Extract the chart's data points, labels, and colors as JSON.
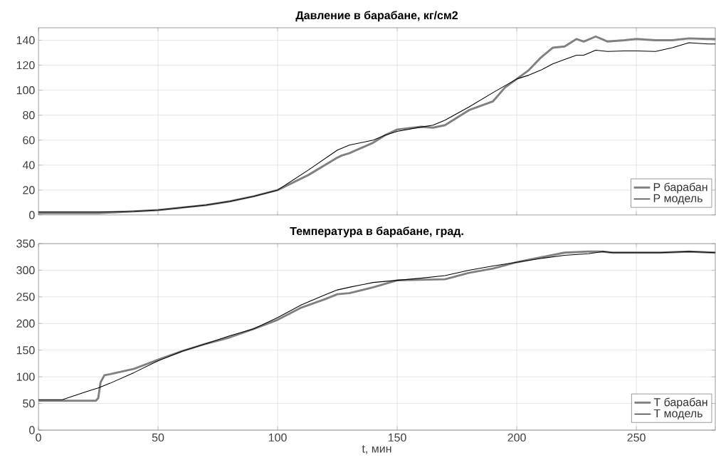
{
  "chart_data": [
    {
      "type": "line",
      "title": "Давление в барабане, кг/см2",
      "xlim": [
        0,
        283
      ],
      "xticks": [
        0,
        50,
        100,
        150,
        200,
        250
      ],
      "ylim": [
        0,
        150
      ],
      "yticks": [
        0,
        20,
        40,
        60,
        80,
        100,
        120,
        140
      ],
      "tick_labels": "y",
      "grid": true,
      "legend": "bottom right",
      "marker": "none",
      "line_style": "solid",
      "series": [
        {
          "name": "P барабан",
          "color": "#808080",
          "x": [
            0,
            25,
            40,
            50,
            60,
            70,
            80,
            90,
            100,
            112.8,
            125,
            126.8,
            130,
            140,
            145,
            150,
            160,
            165,
            170,
            180,
            190,
            195,
            200,
            205,
            210,
            215,
            220,
            225,
            228,
            233,
            238,
            245,
            250,
            258,
            265,
            272,
            280,
            283
          ],
          "values": [
            1.5,
            1.5,
            3,
            4,
            6,
            8,
            11,
            15,
            20,
            32,
            46,
            47.7,
            49.5,
            58,
            64,
            68.5,
            70.7,
            70,
            72,
            84,
            91,
            102,
            109,
            116,
            126,
            134,
            135,
            141,
            139,
            143,
            139,
            140,
            141,
            140,
            140,
            141.5,
            141,
            141
          ]
        },
        {
          "name": "P модель",
          "color": "#000000",
          "x": [
            0,
            25,
            40,
            50,
            60,
            70,
            80,
            90,
            100,
            112.8,
            125,
            126.8,
            130,
            140,
            145,
            150,
            160,
            165,
            170,
            180,
            190,
            195,
            200,
            205,
            210,
            215,
            220,
            225,
            228,
            233,
            238,
            245,
            250,
            258,
            265,
            272,
            280,
            283
          ],
          "values": [
            2.5,
            2.5,
            3,
            4,
            6,
            8,
            11,
            15,
            20,
            36,
            52,
            53.5,
            56,
            60,
            64,
            67,
            70.5,
            72,
            76,
            86.5,
            98,
            103.5,
            109,
            112,
            116,
            121,
            124.6,
            128,
            128,
            132,
            131,
            131.5,
            131.5,
            131,
            134,
            138,
            137,
            137
          ]
        }
      ]
    },
    {
      "type": "line",
      "title": "Температура в барабане, град.",
      "xlabel": "t, мин",
      "xlim": [
        0,
        283
      ],
      "xticks": [
        0,
        50,
        100,
        150,
        200,
        250
      ],
      "ylim": [
        0,
        350
      ],
      "yticks": [
        0,
        50,
        100,
        150,
        200,
        250,
        300,
        350
      ],
      "grid": true,
      "legend": "bottom right",
      "marker": "none",
      "line_style": "solid",
      "series": [
        {
          "name": "T барабан",
          "color": "#808080",
          "x": [
            0,
            10,
            20,
            24,
            25,
            26,
            27.6,
            30,
            40,
            50,
            60,
            70,
            80,
            90,
            100,
            110,
            120,
            125,
            130,
            140,
            150,
            160,
            170,
            180,
            190,
            200,
            210,
            220,
            230,
            236,
            240,
            260,
            272,
            283
          ],
          "values": [
            55,
            55,
            55,
            55,
            60,
            90,
            103,
            105,
            115,
            132,
            148,
            162,
            174,
            190,
            207,
            230,
            246,
            255,
            257,
            268,
            281,
            282,
            283,
            295,
            303,
            315,
            324,
            333,
            335,
            335,
            333,
            333,
            335,
            333
          ]
        },
        {
          "name": "T модель",
          "color": "#000000",
          "x": [
            0,
            10,
            20,
            25,
            30,
            40,
            50,
            60,
            70,
            80,
            90,
            100,
            110,
            120,
            125,
            130,
            140,
            150,
            160,
            170,
            180,
            190,
            200,
            210,
            220,
            230,
            236,
            240,
            260,
            272,
            283
          ],
          "values": [
            57,
            57,
            72,
            79,
            88,
            108,
            130,
            148,
            162,
            177,
            190,
            211,
            235,
            254,
            263,
            268,
            277,
            281,
            285,
            290,
            300,
            308,
            315,
            322,
            328,
            331,
            335,
            333,
            333,
            335,
            333
          ]
        }
      ]
    }
  ]
}
